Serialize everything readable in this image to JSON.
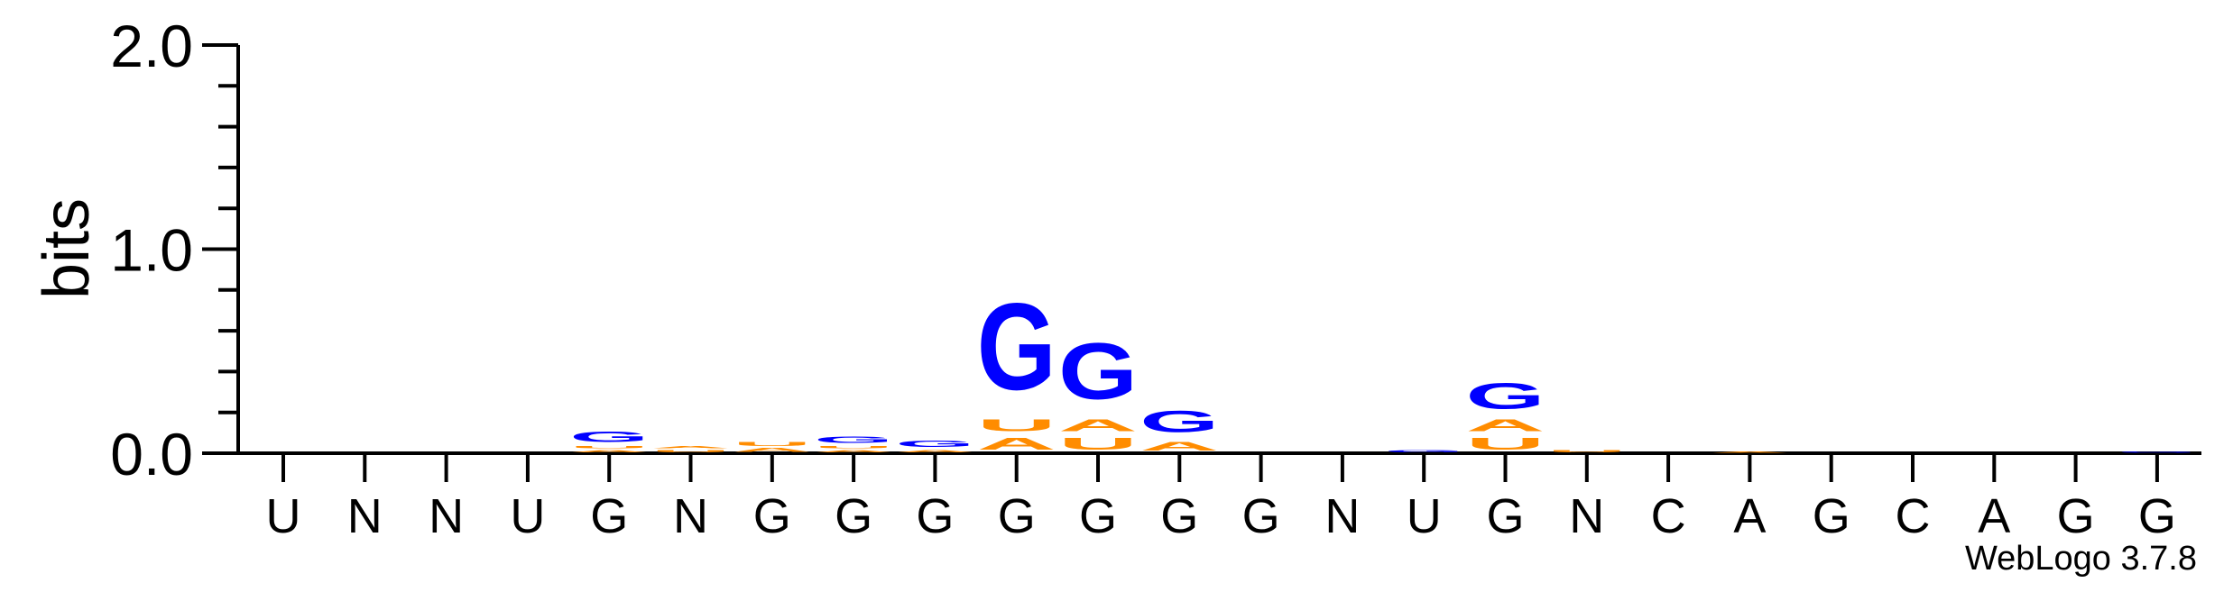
{
  "software_credit": "WebLogo 3.7.8",
  "chart_data": {
    "type": "sequence_logo",
    "ylabel": "bits",
    "ylim": [
      0,
      2.0
    ],
    "yticks": [
      "0.0",
      "1.0",
      "2.0"
    ],
    "ytick_values": [
      0,
      1,
      2
    ],
    "colors": {
      "G": "#0000ff",
      "A": "#ff8c00",
      "U": "#ff8c00",
      "C": "#0000ff"
    },
    "positions": [
      {
        "label": "U",
        "stack": []
      },
      {
        "label": "N",
        "stack": []
      },
      {
        "label": "N",
        "stack": []
      },
      {
        "label": "U",
        "stack": []
      },
      {
        "label": "G",
        "stack": [
          {
            "letter": "A",
            "h": 0.02
          },
          {
            "letter": "U",
            "h": 0.02
          },
          {
            "letter": "G",
            "h": 0.08
          }
        ]
      },
      {
        "label": "N",
        "stack": [
          {
            "letter": "U",
            "h": 0.02
          },
          {
            "letter": "A",
            "h": 0.02
          }
        ]
      },
      {
        "label": "G",
        "stack": [
          {
            "letter": "A",
            "h": 0.03
          },
          {
            "letter": "U",
            "h": 0.03
          }
        ]
      },
      {
        "label": "G",
        "stack": [
          {
            "letter": "A",
            "h": 0.02
          },
          {
            "letter": "U",
            "h": 0.02
          },
          {
            "letter": "G",
            "h": 0.05
          }
        ]
      },
      {
        "label": "G",
        "stack": [
          {
            "letter": "A",
            "h": 0.02
          },
          {
            "letter": "G",
            "h": 0.05
          }
        ]
      },
      {
        "label": "G",
        "stack": [
          {
            "letter": "A",
            "h": 0.09
          },
          {
            "letter": "U",
            "h": 0.09
          },
          {
            "letter": "G",
            "h": 0.68
          }
        ]
      },
      {
        "label": "G",
        "stack": [
          {
            "letter": "U",
            "h": 0.09
          },
          {
            "letter": "A",
            "h": 0.09
          },
          {
            "letter": "G",
            "h": 0.44
          }
        ]
      },
      {
        "label": "G",
        "stack": [
          {
            "letter": "A",
            "h": 0.07
          },
          {
            "letter": "G",
            "h": 0.17
          }
        ]
      },
      {
        "label": "G",
        "stack": []
      },
      {
        "label": "N",
        "stack": []
      },
      {
        "label": "U",
        "stack": [
          {
            "letter": "G",
            "h": 0.02
          }
        ]
      },
      {
        "label": "G",
        "stack": [
          {
            "letter": "U",
            "h": 0.09
          },
          {
            "letter": "A",
            "h": 0.09
          },
          {
            "letter": "G",
            "h": 0.2
          }
        ]
      },
      {
        "label": "N",
        "stack": [
          {
            "letter": "U",
            "h": 0.02
          }
        ]
      },
      {
        "label": "C",
        "stack": []
      },
      {
        "label": "A",
        "stack": [
          {
            "letter": "A",
            "h": 0.01
          }
        ]
      },
      {
        "label": "G",
        "stack": []
      },
      {
        "label": "C",
        "stack": []
      },
      {
        "label": "A",
        "stack": []
      },
      {
        "label": "G",
        "stack": []
      },
      {
        "label": "G",
        "stack": [
          {
            "letter": "G",
            "h": 0.01
          }
        ]
      }
    ]
  }
}
